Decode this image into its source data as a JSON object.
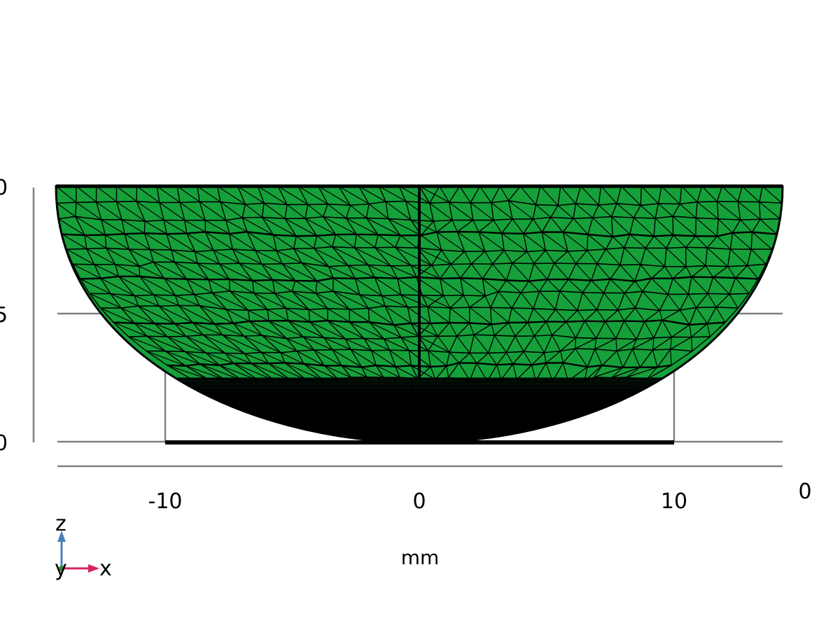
{
  "view": {
    "x_tick_labels": [
      "-10",
      "0",
      "10"
    ],
    "x_edge_label": "0",
    "z_tick_labels": [
      "0",
      "5",
      "0"
    ],
    "unit_label": "mm",
    "triad": {
      "z": "z",
      "y": "y",
      "x": "x"
    }
  },
  "colors": {
    "mesh_fill": "#15a03a",
    "mesh_edge": "#000000",
    "grid": "#808080",
    "triad_z": "#4a7fb5",
    "triad_x": "#d6245f",
    "triad_y": "#2f8f3a"
  }
}
